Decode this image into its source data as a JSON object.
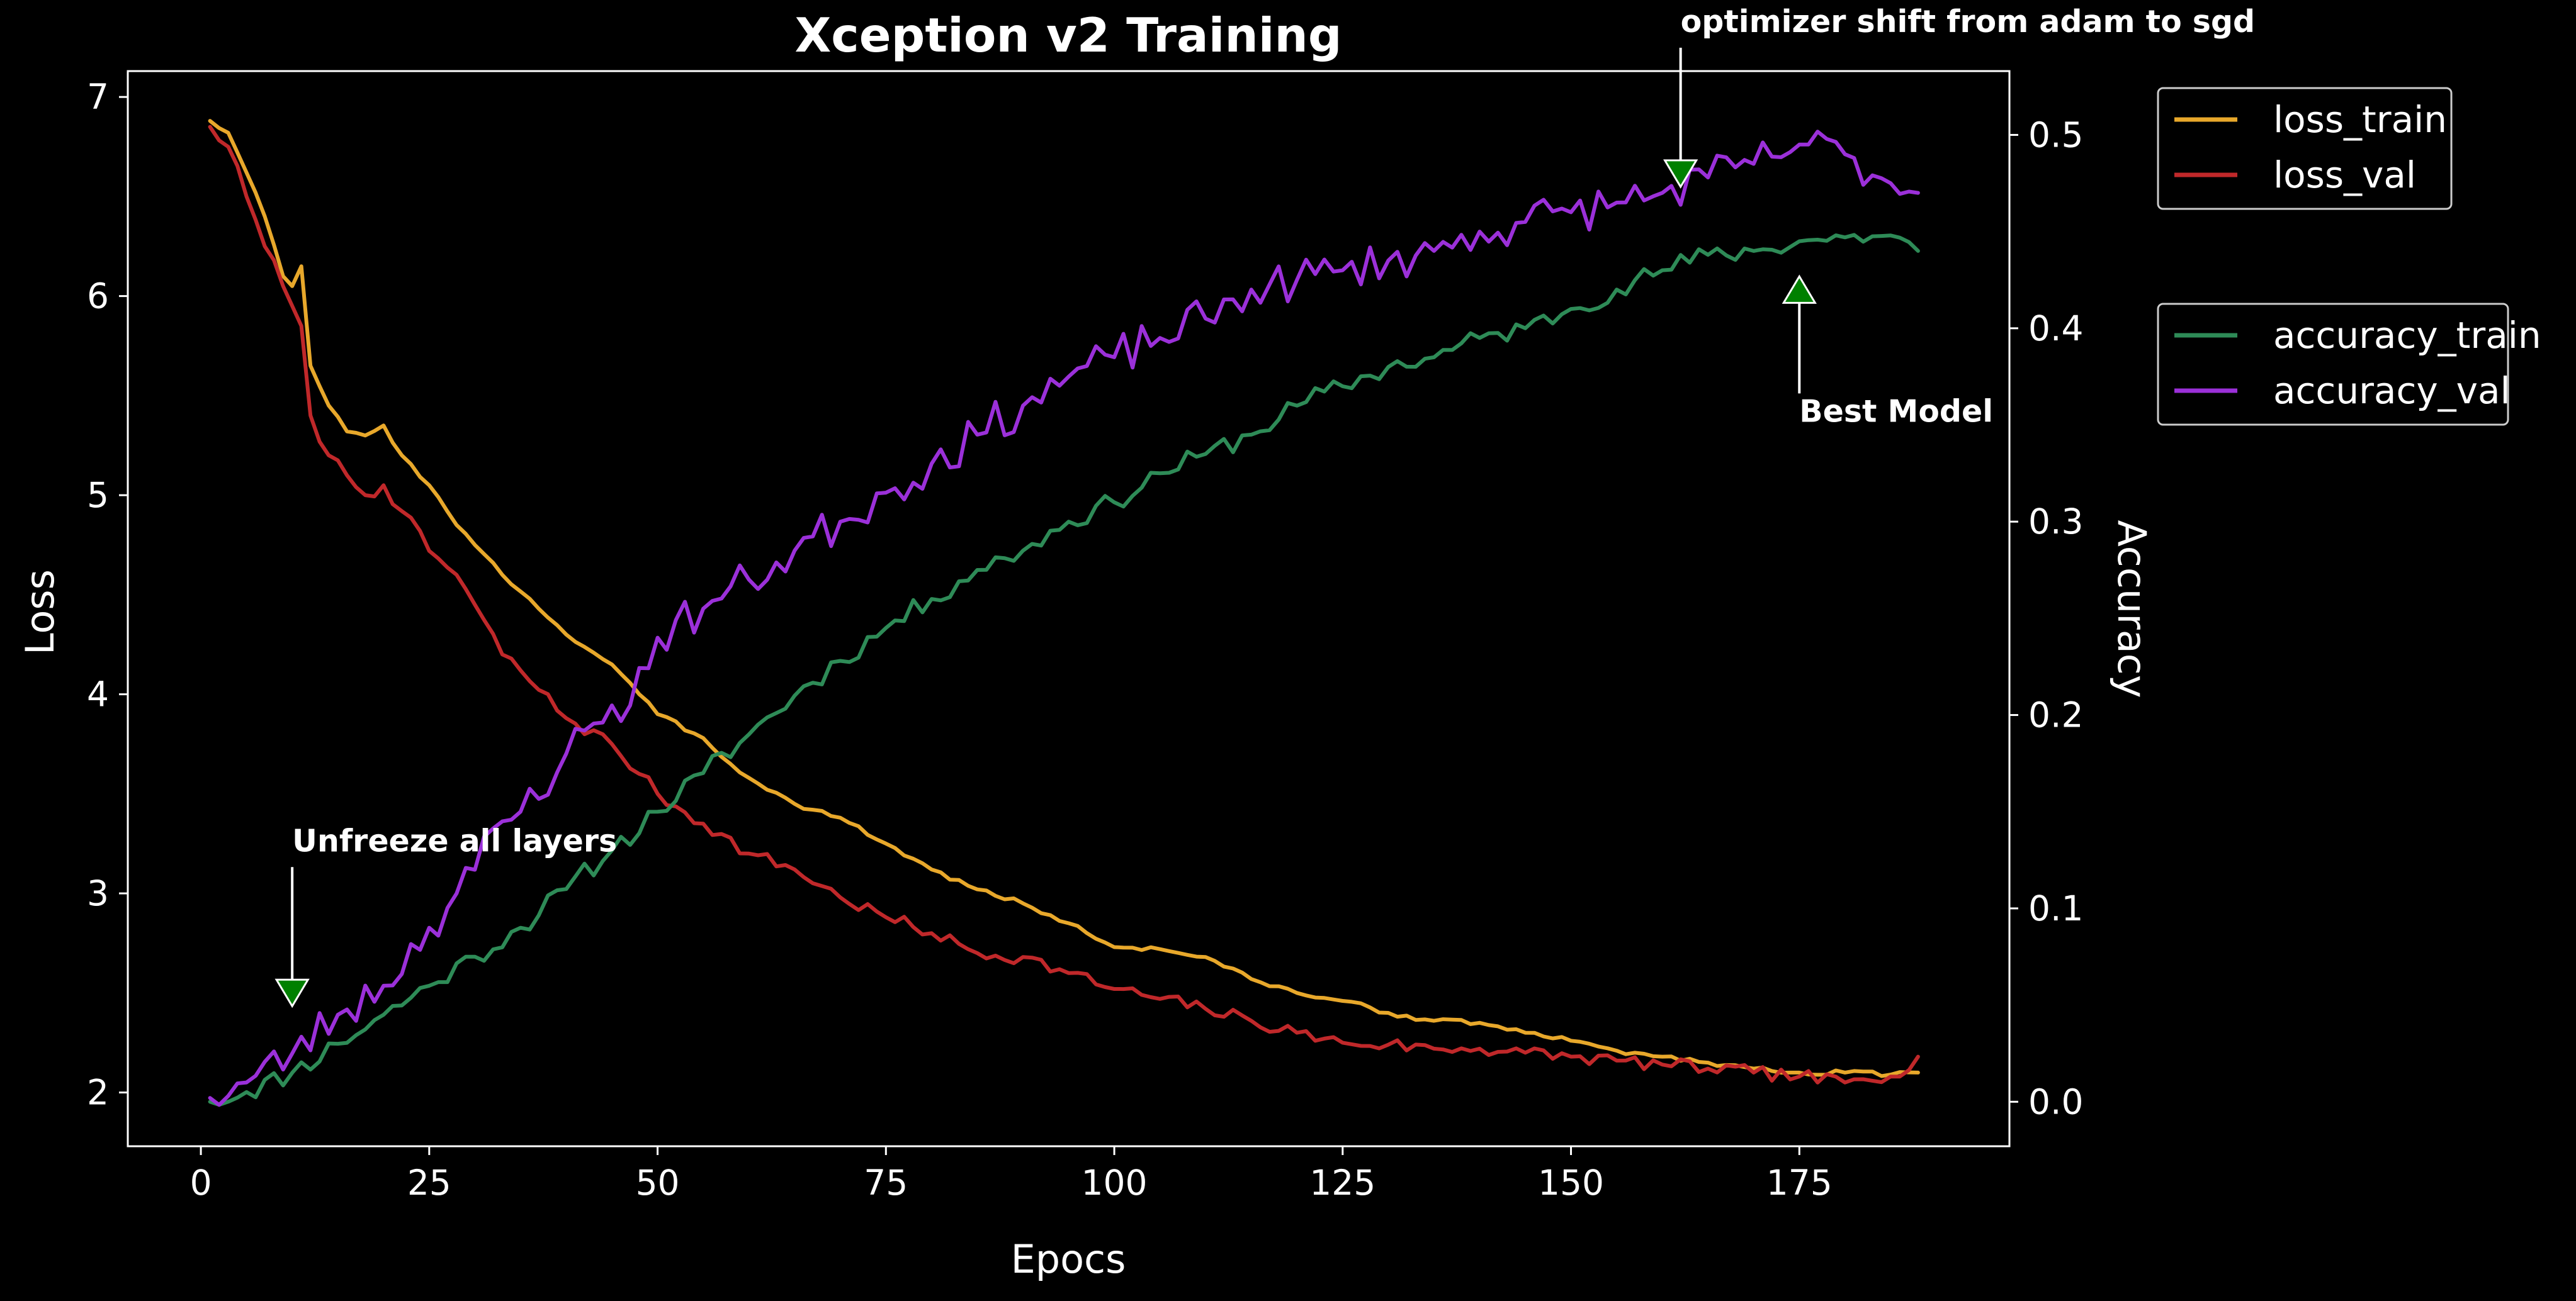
{
  "chart_data": {
    "type": "line",
    "title": "Xception v2 Training",
    "xlabel": "Epocs",
    "ylabel_left": "Loss",
    "ylabel_right": "Accuracy",
    "xlim": [
      -8,
      198
    ],
    "ylim_left": [
      1.73,
      7.13
    ],
    "ylim_right": [
      -0.023,
      0.533
    ],
    "x_ticks": [
      0,
      25,
      50,
      75,
      100,
      125,
      150,
      175
    ],
    "x_tick_labels": [
      "0",
      "25",
      "50",
      "75",
      "100",
      "125",
      "150",
      "175"
    ],
    "y_left_ticks": [
      2,
      3,
      4,
      5,
      6,
      7
    ],
    "y_left_tick_labels": [
      "2",
      "3",
      "4",
      "5",
      "6",
      "7"
    ],
    "y_right_ticks": [
      0.0,
      0.1,
      0.2,
      0.3,
      0.4,
      0.5
    ],
    "y_right_tick_labels": [
      "0.0",
      "0.1",
      "0.2",
      "0.3",
      "0.4",
      "0.5"
    ],
    "grid": false,
    "background": "#000000",
    "epochs": {
      "start": 1,
      "end": 188
    },
    "series": [
      {
        "name": "loss_train",
        "axis": "left",
        "color": "#e8a82b",
        "keypoints": [
          [
            1,
            6.88
          ],
          [
            3,
            6.82
          ],
          [
            5,
            6.62
          ],
          [
            7,
            6.4
          ],
          [
            9,
            6.1
          ],
          [
            10,
            6.05
          ],
          [
            11,
            6.15
          ],
          [
            12,
            5.65
          ],
          [
            14,
            5.45
          ],
          [
            16,
            5.32
          ],
          [
            18,
            5.3
          ],
          [
            20,
            5.35
          ],
          [
            22,
            5.2
          ],
          [
            25,
            5.05
          ],
          [
            28,
            4.85
          ],
          [
            30,
            4.75
          ],
          [
            33,
            4.6
          ],
          [
            36,
            4.48
          ],
          [
            40,
            4.3
          ],
          [
            45,
            4.15
          ],
          [
            48,
            4.0
          ],
          [
            50,
            3.9
          ],
          [
            55,
            3.78
          ],
          [
            58,
            3.65
          ],
          [
            60,
            3.58
          ],
          [
            65,
            3.45
          ],
          [
            70,
            3.38
          ],
          [
            75,
            3.25
          ],
          [
            80,
            3.12
          ],
          [
            85,
            3.02
          ],
          [
            90,
            2.95
          ],
          [
            95,
            2.85
          ],
          [
            100,
            2.73
          ],
          [
            105,
            2.72
          ],
          [
            110,
            2.68
          ],
          [
            115,
            2.57
          ],
          [
            120,
            2.5
          ],
          [
            125,
            2.46
          ],
          [
            130,
            2.4
          ],
          [
            135,
            2.36
          ],
          [
            140,
            2.35
          ],
          [
            145,
            2.3
          ],
          [
            150,
            2.26
          ],
          [
            155,
            2.21
          ],
          [
            160,
            2.18
          ],
          [
            165,
            2.15
          ],
          [
            170,
            2.12
          ],
          [
            175,
            2.1
          ],
          [
            180,
            2.1
          ],
          [
            185,
            2.09
          ],
          [
            188,
            2.1
          ]
        ],
        "noise": 0.012,
        "seed": 3
      },
      {
        "name": "loss_val",
        "axis": "left",
        "color": "#c0282a",
        "keypoints": [
          [
            1,
            6.85
          ],
          [
            3,
            6.75
          ],
          [
            5,
            6.5
          ],
          [
            7,
            6.25
          ],
          [
            9,
            6.05
          ],
          [
            10,
            5.95
          ],
          [
            11,
            5.85
          ],
          [
            12,
            5.4
          ],
          [
            14,
            5.2
          ],
          [
            16,
            5.1
          ],
          [
            18,
            5.0
          ],
          [
            20,
            5.05
          ],
          [
            22,
            4.92
          ],
          [
            25,
            4.72
          ],
          [
            28,
            4.6
          ],
          [
            30,
            4.45
          ],
          [
            33,
            4.2
          ],
          [
            35,
            4.12
          ],
          [
            40,
            3.88
          ],
          [
            45,
            3.75
          ],
          [
            48,
            3.6
          ],
          [
            50,
            3.5
          ],
          [
            55,
            3.35
          ],
          [
            60,
            3.2
          ],
          [
            65,
            3.12
          ],
          [
            70,
            2.98
          ],
          [
            75,
            2.88
          ],
          [
            80,
            2.8
          ],
          [
            85,
            2.7
          ],
          [
            90,
            2.68
          ],
          [
            95,
            2.6
          ],
          [
            100,
            2.52
          ],
          [
            105,
            2.47
          ],
          [
            110,
            2.42
          ],
          [
            115,
            2.36
          ],
          [
            120,
            2.3
          ],
          [
            125,
            2.25
          ],
          [
            130,
            2.24
          ],
          [
            135,
            2.22
          ],
          [
            140,
            2.22
          ],
          [
            145,
            2.2
          ],
          [
            150,
            2.18
          ],
          [
            155,
            2.16
          ],
          [
            160,
            2.14
          ],
          [
            165,
            2.12
          ],
          [
            170,
            2.1
          ],
          [
            175,
            2.08
          ],
          [
            180,
            2.05
          ],
          [
            185,
            2.08
          ],
          [
            188,
            2.18
          ]
        ],
        "noise": 0.035,
        "seed": 7
      },
      {
        "name": "accuracy_train",
        "axis": "right",
        "color": "#2e8b57",
        "keypoints": [
          [
            1,
            0.0
          ],
          [
            5,
            0.005
          ],
          [
            10,
            0.015
          ],
          [
            15,
            0.03
          ],
          [
            20,
            0.045
          ],
          [
            25,
            0.06
          ],
          [
            30,
            0.075
          ],
          [
            35,
            0.09
          ],
          [
            40,
            0.11
          ],
          [
            45,
            0.13
          ],
          [
            50,
            0.15
          ],
          [
            55,
            0.17
          ],
          [
            60,
            0.19
          ],
          [
            65,
            0.21
          ],
          [
            70,
            0.228
          ],
          [
            75,
            0.245
          ],
          [
            80,
            0.26
          ],
          [
            85,
            0.275
          ],
          [
            90,
            0.285
          ],
          [
            95,
            0.3
          ],
          [
            100,
            0.31
          ],
          [
            105,
            0.325
          ],
          [
            110,
            0.335
          ],
          [
            115,
            0.345
          ],
          [
            120,
            0.36
          ],
          [
            125,
            0.37
          ],
          [
            130,
            0.38
          ],
          [
            135,
            0.385
          ],
          [
            140,
            0.395
          ],
          [
            145,
            0.4
          ],
          [
            150,
            0.41
          ],
          [
            155,
            0.42
          ],
          [
            160,
            0.43
          ],
          [
            165,
            0.438
          ],
          [
            170,
            0.44
          ],
          [
            175,
            0.445
          ],
          [
            180,
            0.447
          ],
          [
            185,
            0.448
          ],
          [
            188,
            0.44
          ]
        ],
        "noise": 0.0055,
        "seed": 11
      },
      {
        "name": "accuracy_val",
        "axis": "right",
        "color": "#9b30d9",
        "keypoints": [
          [
            1,
            0.002
          ],
          [
            5,
            0.01
          ],
          [
            10,
            0.025
          ],
          [
            15,
            0.045
          ],
          [
            20,
            0.06
          ],
          [
            25,
            0.09
          ],
          [
            30,
            0.12
          ],
          [
            33,
            0.145
          ],
          [
            35,
            0.15
          ],
          [
            40,
            0.18
          ],
          [
            45,
            0.205
          ],
          [
            47,
            0.205
          ],
          [
            50,
            0.24
          ],
          [
            55,
            0.255
          ],
          [
            60,
            0.27
          ],
          [
            65,
            0.285
          ],
          [
            70,
            0.3
          ],
          [
            75,
            0.315
          ],
          [
            80,
            0.33
          ],
          [
            85,
            0.345
          ],
          [
            90,
            0.36
          ],
          [
            95,
            0.375
          ],
          [
            100,
            0.385
          ],
          [
            105,
            0.395
          ],
          [
            110,
            0.405
          ],
          [
            115,
            0.42
          ],
          [
            120,
            0.425
          ],
          [
            125,
            0.43
          ],
          [
            130,
            0.435
          ],
          [
            135,
            0.44
          ],
          [
            140,
            0.45
          ],
          [
            145,
            0.455
          ],
          [
            150,
            0.46
          ],
          [
            155,
            0.465
          ],
          [
            160,
            0.47
          ],
          [
            165,
            0.478
          ],
          [
            170,
            0.485
          ],
          [
            175,
            0.495
          ],
          [
            180,
            0.49
          ],
          [
            185,
            0.475
          ],
          [
            188,
            0.47
          ]
        ],
        "noise": 0.011,
        "seed": 23
      }
    ],
    "legends": [
      {
        "placement": "upper-right-outside",
        "entries": [
          "loss_train",
          "loss_val"
        ]
      },
      {
        "placement": "right-outside",
        "entries": [
          "accuracy_train",
          "accuracy_val"
        ]
      }
    ],
    "annotations": [
      {
        "text": "Unfreeze all layers",
        "x": 10,
        "y": 2.5,
        "axis": "left",
        "marker": "down-triangle",
        "marker_color": "#008000"
      },
      {
        "text": "optimizer shift from adam to sgd",
        "x": 162,
        "y": 0.48,
        "axis": "right",
        "marker": "down-triangle",
        "marker_color": "#008000"
      },
      {
        "text": "Best Model",
        "x": 175,
        "y": 0.42,
        "axis": "right",
        "marker": "up-triangle",
        "marker_color": "#008000"
      }
    ]
  }
}
